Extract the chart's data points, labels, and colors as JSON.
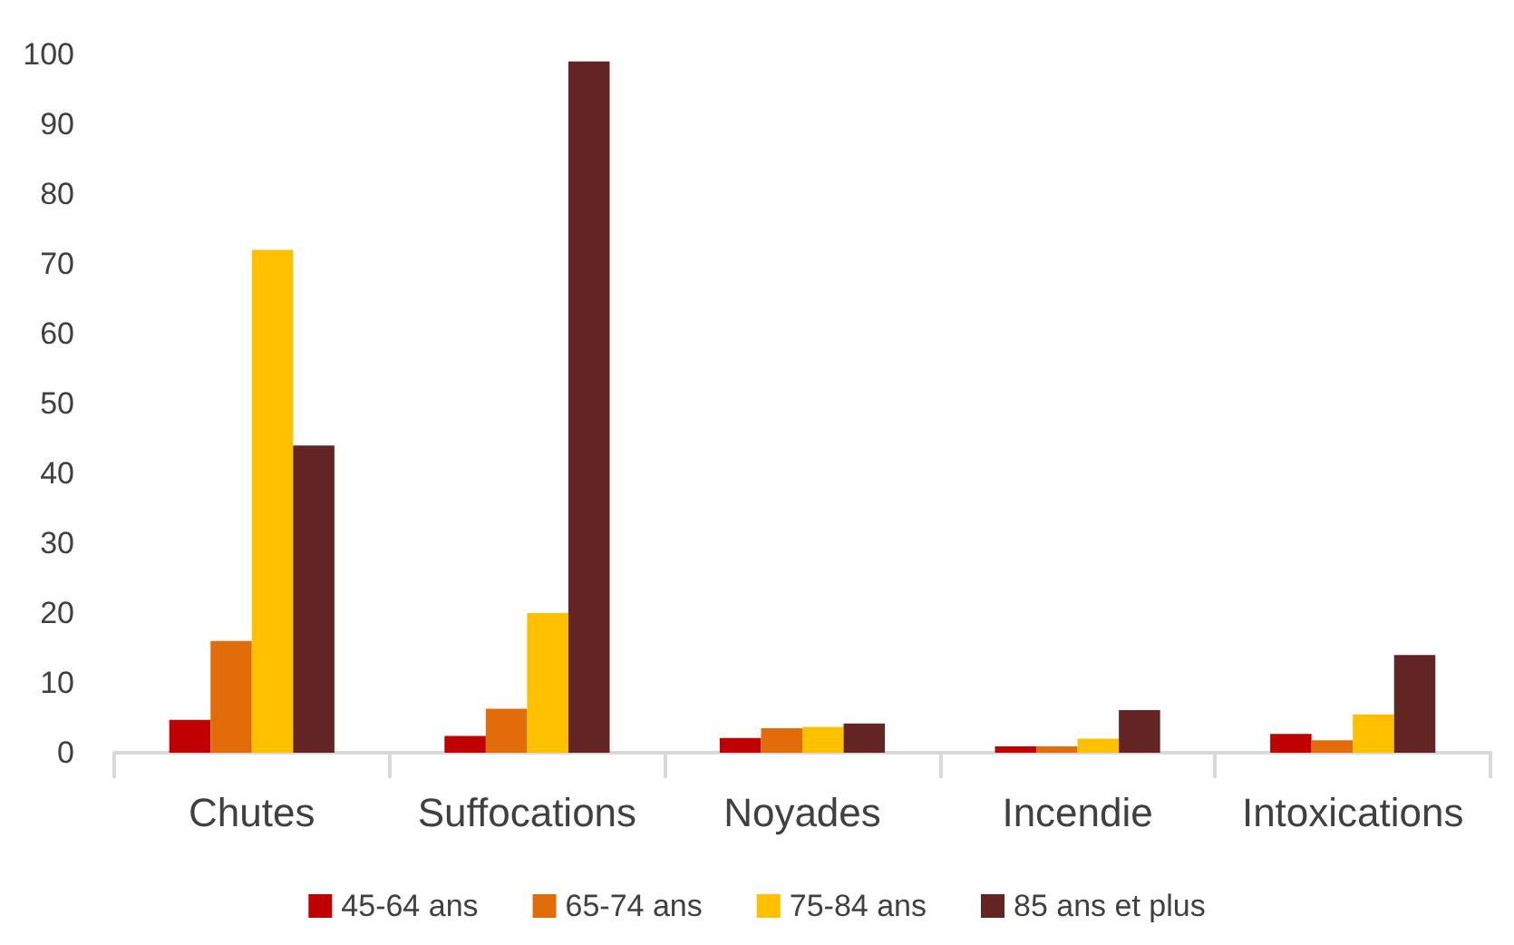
{
  "chart_data": {
    "type": "bar",
    "categories": [
      "Chutes",
      "Suffocations",
      "Noyades",
      "Incendie",
      "Intoxications"
    ],
    "series": [
      {
        "name": "45-64 ans",
        "color": "#c00000",
        "values": [
          4.7,
          2.4,
          2.1,
          0.9,
          2.7
        ]
      },
      {
        "name": "65-74 ans",
        "color": "#e36c0a",
        "values": [
          16,
          6.3,
          3.5,
          0.9,
          1.8
        ]
      },
      {
        "name": "75-84 ans",
        "color": "#ffc000",
        "values": [
          72,
          20,
          3.7,
          2,
          5.5
        ]
      },
      {
        "name": "85 ans et plus",
        "color": "#632523",
        "values": [
          44,
          99,
          4.2,
          6.1,
          14
        ]
      }
    ],
    "ylim": [
      0,
      100
    ],
    "yticks": [
      0,
      10,
      20,
      30,
      40,
      50,
      60,
      70,
      80,
      90,
      100
    ],
    "grid": false,
    "legend": "bottom"
  }
}
